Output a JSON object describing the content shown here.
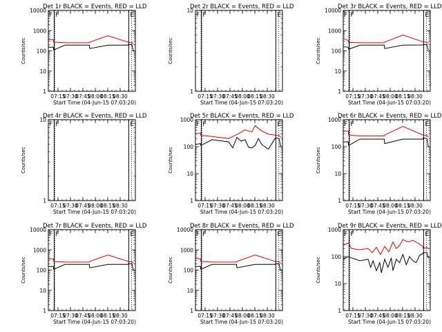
{
  "colors": {
    "events": "#000000",
    "lld": "#e00000",
    "axes": "#000000",
    "background": "#ffffff"
  },
  "labels": {
    "ylabel": "Counts/sec",
    "xlabel": "Start Time (04-Jun-15 07:03:20)",
    "marker_left": "F",
    "marker_right": "E"
  },
  "chart_data": [
    {
      "type": "line",
      "title": "Det 1r BLACK = Events, RED = LLD",
      "x_ticks": [
        "07:15",
        "07:30",
        "07:45",
        "08:00",
        "08:15",
        "08:30"
      ],
      "y_scale": "log",
      "ylim": [
        1,
        10000
      ],
      "y_ticks": [
        "1",
        "10",
        "100",
        "1000",
        "10000"
      ],
      "x_range_min": [
        0,
        105
      ],
      "markers": {
        "solid_min": [
          7,
          97
        ],
        "dotted_min": [
          8,
          100.5
        ]
      },
      "series": [
        {
          "x_min": [
            0,
            6,
            6.5,
            20,
            49.5,
            50,
            72,
            96,
            96.5,
            101,
            102,
            103
          ],
          "values": [
            360,
            360,
            270,
            250,
            250,
            270,
            560,
            270,
            260,
            260,
            230,
            230
          ]
        },
        {
          "x_min": [
            0,
            6,
            6.5,
            20,
            49.5,
            50,
            72,
            96,
            96.5,
            101,
            102,
            103
          ],
          "values": [
            150,
            150,
            110,
            190,
            190,
            130,
            190,
            190,
            210,
            200,
            120,
            100
          ]
        }
      ]
    },
    {
      "type": "line",
      "title": "Det 2r BLACK = Events, RED = LLD",
      "x_ticks": [
        "07:15",
        "07:30",
        "07:45",
        "08:00",
        "08:15",
        "08:30"
      ],
      "y_scale": "log",
      "ylim": [
        1,
        10
      ],
      "y_ticks": [
        "1",
        "10"
      ],
      "x_range_min": [
        0,
        105
      ],
      "markers": {
        "solid_min": [
          7,
          97
        ],
        "dotted_min": [
          8,
          100.5
        ]
      },
      "series": []
    },
    {
      "type": "line",
      "title": "Det 3r BLACK = Events, RED = LLD",
      "x_ticks": [
        "07:15",
        "07:30",
        "07:45",
        "08:00",
        "08:15",
        "08:30"
      ],
      "y_scale": "log",
      "ylim": [
        1,
        10000
      ],
      "y_ticks": [
        "1",
        "10",
        "100",
        "1000",
        "10000"
      ],
      "x_range_min": [
        0,
        105
      ],
      "markers": {
        "solid_min": [
          7,
          97
        ],
        "dotted_min": [
          8,
          100.5
        ]
      },
      "series": [
        {
          "x_min": [
            0,
            6,
            6.5,
            20,
            49.5,
            50,
            72,
            96,
            96.5,
            101,
            102,
            103
          ],
          "values": [
            410,
            320,
            260,
            250,
            250,
            270,
            600,
            280,
            270,
            270,
            240,
            250
          ]
        },
        {
          "x_min": [
            0,
            6,
            6.5,
            20,
            49.5,
            50,
            72,
            96,
            96.5,
            101,
            102,
            103
          ],
          "values": [
            160,
            150,
            120,
            190,
            190,
            130,
            190,
            195,
            210,
            200,
            130,
            110
          ]
        }
      ]
    },
    {
      "type": "line",
      "title": "Det 4r BLACK = Events, RED = LLD",
      "x_ticks": [
        "07:15",
        "07:30",
        "07:45",
        "08:00",
        "08:15",
        "08:30"
      ],
      "y_scale": "log",
      "ylim": [
        1,
        10
      ],
      "y_ticks": [
        "1",
        "10"
      ],
      "x_range_min": [
        0,
        105
      ],
      "markers": {
        "solid_min": [
          7,
          97
        ],
        "dotted_min": [
          8,
          100.5
        ]
      },
      "series": []
    },
    {
      "type": "line",
      "title": "Det 5r BLACK = Events, RED = LLD",
      "x_ticks": [
        "07:15",
        "07:30",
        "07:45",
        "08:00",
        "08:15",
        "08:30"
      ],
      "y_scale": "log",
      "ylim": [
        1,
        1000
      ],
      "y_ticks": [
        "1",
        "10",
        "100",
        "1000"
      ],
      "x_range_min": [
        0,
        105
      ],
      "markers": {
        "solid_min": [
          7,
          97
        ],
        "dotted_min": [
          8,
          100.5
        ]
      },
      "series": [
        {
          "x_min": [
            0,
            6,
            6.5,
            20,
            40,
            50,
            60,
            68,
            72,
            80,
            88,
            96,
            96.5,
            101,
            102,
            103
          ],
          "values": [
            300,
            320,
            260,
            240,
            200,
            280,
            420,
            350,
            600,
            380,
            290,
            270,
            260,
            260,
            240,
            220
          ]
        },
        {
          "x_min": [
            0,
            6,
            6.5,
            20,
            40,
            45,
            50,
            55,
            60,
            64,
            68,
            72,
            76,
            80,
            88,
            96,
            96.5,
            101,
            102,
            103
          ],
          "values": [
            120,
            130,
            110,
            180,
            150,
            90,
            220,
            160,
            180,
            95,
            90,
            110,
            200,
            120,
            80,
            200,
            210,
            200,
            130,
            100
          ]
        }
      ]
    },
    {
      "type": "line",
      "title": "Det 6r BLACK = Events, RED = LLD",
      "x_ticks": [
        "07:15",
        "07:30",
        "07:45",
        "08:00",
        "08:15",
        "08:30"
      ],
      "y_scale": "log",
      "ylim": [
        1,
        1000
      ],
      "y_ticks": [
        "1",
        "10",
        "100",
        "1000"
      ],
      "x_range_min": [
        0,
        105
      ],
      "markers": {
        "solid_min": [
          7,
          97
        ],
        "dotted_min": [
          8,
          100.5
        ]
      },
      "series": [
        {
          "x_min": [
            0,
            6,
            6.5,
            20,
            49.5,
            50,
            72,
            96,
            96.5,
            101,
            102,
            103
          ],
          "values": [
            360,
            380,
            270,
            250,
            250,
            270,
            560,
            270,
            260,
            260,
            230,
            230
          ]
        },
        {
          "x_min": [
            0,
            6,
            6.5,
            20,
            49.5,
            50,
            72,
            96,
            96.5,
            101,
            102,
            103
          ],
          "values": [
            150,
            150,
            110,
            190,
            190,
            130,
            190,
            190,
            210,
            200,
            120,
            100
          ]
        }
      ]
    },
    {
      "type": "line",
      "title": "Det 7r BLACK = Events, RED = LLD",
      "x_ticks": [
        "07:15",
        "07:30",
        "07:45",
        "08:00",
        "08:15",
        "08:30"
      ],
      "y_scale": "log",
      "ylim": [
        1,
        10000
      ],
      "y_ticks": [
        "1",
        "10",
        "100",
        "1000",
        "10000"
      ],
      "x_range_min": [
        0,
        105
      ],
      "markers": {
        "solid_min": [
          7,
          97
        ],
        "dotted_min": [
          8,
          100.5
        ]
      },
      "series": [
        {
          "x_min": [
            0,
            6,
            6.5,
            20,
            49.5,
            50,
            72,
            96,
            96.5,
            101,
            102,
            103
          ],
          "values": [
            360,
            360,
            270,
            250,
            250,
            270,
            560,
            270,
            260,
            260,
            230,
            230
          ]
        },
        {
          "x_min": [
            0,
            6,
            6.5,
            20,
            49.5,
            50,
            72,
            96,
            96.5,
            101,
            102,
            103
          ],
          "values": [
            150,
            150,
            110,
            190,
            190,
            130,
            190,
            190,
            210,
            200,
            120,
            100
          ]
        }
      ]
    },
    {
      "type": "line",
      "title": "Det 8r BLACK = Events, RED = LLD",
      "x_ticks": [
        "07:15",
        "07:30",
        "07:45",
        "08:00",
        "08:15",
        "08:30"
      ],
      "y_scale": "log",
      "ylim": [
        1,
        10000
      ],
      "y_ticks": [
        "1",
        "10",
        "100",
        "1000",
        "10000"
      ],
      "x_range_min": [
        0,
        105
      ],
      "markers": {
        "solid_min": [
          7,
          97
        ],
        "dotted_min": [
          8,
          100.5
        ]
      },
      "series": [
        {
          "x_min": [
            0,
            6,
            6.5,
            20,
            49.5,
            50,
            72,
            96,
            96.5,
            101,
            102,
            103
          ],
          "values": [
            380,
            360,
            270,
            250,
            250,
            270,
            560,
            270,
            260,
            260,
            230,
            230
          ]
        },
        {
          "x_min": [
            0,
            6,
            6.5,
            20,
            49.5,
            50,
            72,
            96,
            96.5,
            101,
            102,
            103
          ],
          "values": [
            150,
            150,
            110,
            190,
            190,
            130,
            190,
            190,
            210,
            200,
            120,
            100
          ]
        }
      ]
    },
    {
      "type": "line",
      "title": "Det 9r BLACK = Events, RED = LLD",
      "x_ticks": [
        "07:15",
        "07:30",
        "07:45",
        "08:00",
        "08:15",
        "08:30"
      ],
      "y_scale": "log",
      "ylim": [
        1,
        1000
      ],
      "y_ticks": [
        "1",
        "10",
        "100",
        "1000"
      ],
      "x_range_min": [
        0,
        105
      ],
      "markers": {
        "solid_min": [
          7,
          97
        ],
        "dotted_min": [
          8,
          100.5
        ]
      },
      "series": [
        {
          "x_min": [
            0,
            6,
            10,
            20,
            30,
            35,
            40,
            45,
            50,
            55,
            60,
            64,
            68,
            72,
            78,
            84,
            90,
            96,
            96.5,
            101,
            102,
            103
          ],
          "values": [
            260,
            320,
            200,
            180,
            200,
            140,
            220,
            120,
            240,
            150,
            350,
            200,
            260,
            430,
            350,
            400,
            320,
            240,
            200,
            220,
            200,
            200
          ]
        },
        {
          "x_min": [
            0,
            6,
            10,
            20,
            30,
            33,
            36,
            40,
            44,
            46,
            50,
            54,
            58,
            60,
            64,
            68,
            72,
            76,
            80,
            84,
            88,
            92,
            96,
            96.5,
            101,
            102,
            103
          ],
          "values": [
            80,
            100,
            90,
            70,
            80,
            40,
            70,
            30,
            60,
            25,
            80,
            40,
            90,
            30,
            80,
            60,
            120,
            50,
            100,
            70,
            60,
            110,
            130,
            140,
            140,
            100,
            90
          ]
        }
      ]
    }
  ]
}
